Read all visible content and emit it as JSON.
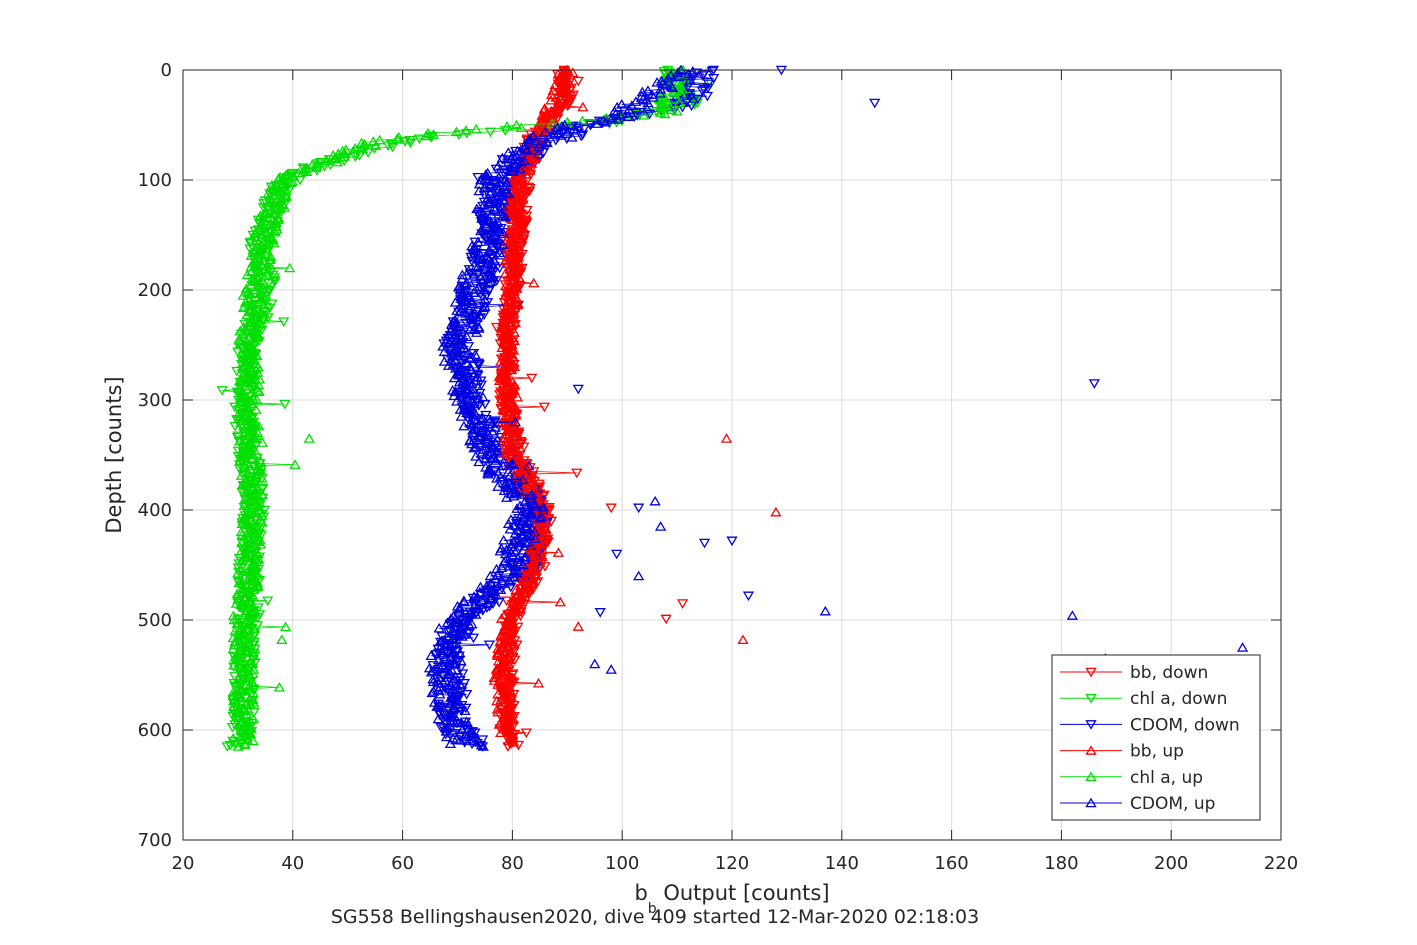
{
  "chart_data": {
    "type": "scatter",
    "title": "",
    "xlabel": "b",
    "xlabel_subscript": "b",
    "xlabel_rest": " Output [counts]",
    "ylabel": "Depth [counts]",
    "caption": "SG558 Bellingshausen2020, dive 409 started 12-Mar-2020 02:18:03",
    "xlim": [
      20,
      220
    ],
    "ylim": [
      0,
      700
    ],
    "y_reversed": true,
    "grid": true,
    "legend_placement": "bottom-right",
    "x_ticks": [
      "20",
      "40",
      "60",
      "80",
      "100",
      "120",
      "140",
      "160",
      "180",
      "200",
      "220"
    ],
    "y_ticks": [
      "0",
      "100",
      "200",
      "300",
      "400",
      "500",
      "600",
      "700"
    ],
    "series": [
      {
        "name": "bb, down",
        "color": "#ff0000",
        "marker": "triangle-down",
        "profile": [
          [
            0,
            89
          ],
          [
            30,
            90
          ],
          [
            60,
            84
          ],
          [
            100,
            82
          ],
          [
            150,
            81
          ],
          [
            200,
            80
          ],
          [
            250,
            79
          ],
          [
            300,
            79
          ],
          [
            350,
            81
          ],
          [
            400,
            86
          ],
          [
            450,
            85
          ],
          [
            500,
            80
          ],
          [
            550,
            79
          ],
          [
            600,
            79
          ],
          [
            615,
            80
          ]
        ],
        "outliers": [
          [
            10,
            92
          ],
          [
            398,
            98
          ],
          [
            485,
            111
          ],
          [
            499,
            108
          ]
        ]
      },
      {
        "name": "chl a, down",
        "color": "#00e000",
        "marker": "triangle-down",
        "profile": [
          [
            0,
            108
          ],
          [
            30,
            112
          ],
          [
            50,
            95
          ],
          [
            60,
            65
          ],
          [
            75,
            52
          ],
          [
            90,
            43
          ],
          [
            105,
            38
          ],
          [
            130,
            36
          ],
          [
            160,
            34
          ],
          [
            200,
            35
          ],
          [
            250,
            32
          ],
          [
            300,
            31
          ],
          [
            350,
            32
          ],
          [
            400,
            33
          ],
          [
            450,
            32
          ],
          [
            500,
            32
          ],
          [
            550,
            31
          ],
          [
            600,
            31
          ],
          [
            615,
            30
          ]
        ],
        "outliers": []
      },
      {
        "name": "CDOM, down",
        "color": "#0000e0",
        "marker": "triangle-down",
        "profile": [
          [
            0,
            115
          ],
          [
            30,
            112
          ],
          [
            50,
            95
          ],
          [
            70,
            84
          ],
          [
            100,
            78
          ],
          [
            150,
            76
          ],
          [
            200,
            74
          ],
          [
            250,
            70
          ],
          [
            300,
            73
          ],
          [
            350,
            77
          ],
          [
            400,
            84
          ],
          [
            450,
            82
          ],
          [
            500,
            71
          ],
          [
            550,
            68
          ],
          [
            600,
            70
          ],
          [
            615,
            73
          ]
        ],
        "outliers": [
          [
            0,
            129
          ],
          [
            30,
            146
          ],
          [
            285,
            186
          ],
          [
            290,
            92
          ],
          [
            398,
            103
          ],
          [
            430,
            115
          ],
          [
            428,
            120
          ],
          [
            440,
            99
          ],
          [
            478,
            123
          ],
          [
            493,
            96
          ]
        ]
      },
      {
        "name": "bb, up",
        "color": "#ff0000",
        "marker": "triangle-up",
        "profile": [
          [
            0,
            90
          ],
          [
            50,
            86
          ],
          [
            100,
            81
          ],
          [
            150,
            80
          ],
          [
            200,
            80
          ],
          [
            250,
            79
          ],
          [
            300,
            79
          ],
          [
            350,
            80
          ],
          [
            400,
            85
          ],
          [
            450,
            84
          ],
          [
            500,
            79
          ],
          [
            550,
            78
          ],
          [
            600,
            79
          ],
          [
            612,
            80
          ]
        ],
        "outliers": [
          [
            335,
            119
          ],
          [
            402,
            128
          ],
          [
            518,
            122
          ],
          [
            506,
            92
          ]
        ]
      },
      {
        "name": "chl a, up",
        "color": "#00e000",
        "marker": "triangle-up",
        "profile": [
          [
            0,
            110
          ],
          [
            40,
            108
          ],
          [
            55,
            70
          ],
          [
            65,
            55
          ],
          [
            80,
            48
          ],
          [
            100,
            38
          ],
          [
            150,
            35
          ],
          [
            200,
            33
          ],
          [
            250,
            32
          ],
          [
            300,
            32
          ],
          [
            350,
            32
          ],
          [
            400,
            33
          ],
          [
            450,
            32
          ],
          [
            500,
            31
          ],
          [
            550,
            31
          ],
          [
            600,
            31
          ],
          [
            615,
            31
          ]
        ],
        "outliers": [
          [
            335,
            43
          ],
          [
            518,
            38
          ]
        ]
      },
      {
        "name": "CDOM, up",
        "color": "#0000e0",
        "marker": "triangle-up",
        "profile": [
          [
            0,
            112
          ],
          [
            40,
            100
          ],
          [
            60,
            85
          ],
          [
            100,
            77
          ],
          [
            150,
            76
          ],
          [
            200,
            73
          ],
          [
            250,
            70
          ],
          [
            300,
            72
          ],
          [
            350,
            76
          ],
          [
            400,
            83
          ],
          [
            450,
            80
          ],
          [
            500,
            70
          ],
          [
            550,
            67
          ],
          [
            600,
            70
          ],
          [
            615,
            72
          ]
        ],
        "outliers": [
          [
            392,
            106
          ],
          [
            415,
            107
          ],
          [
            460,
            103
          ],
          [
            492,
            137
          ],
          [
            496,
            182
          ],
          [
            525,
            213
          ],
          [
            535,
            188
          ],
          [
            540,
            95
          ],
          [
            545,
            98
          ],
          [
            360,
            83
          ]
        ]
      }
    ]
  }
}
